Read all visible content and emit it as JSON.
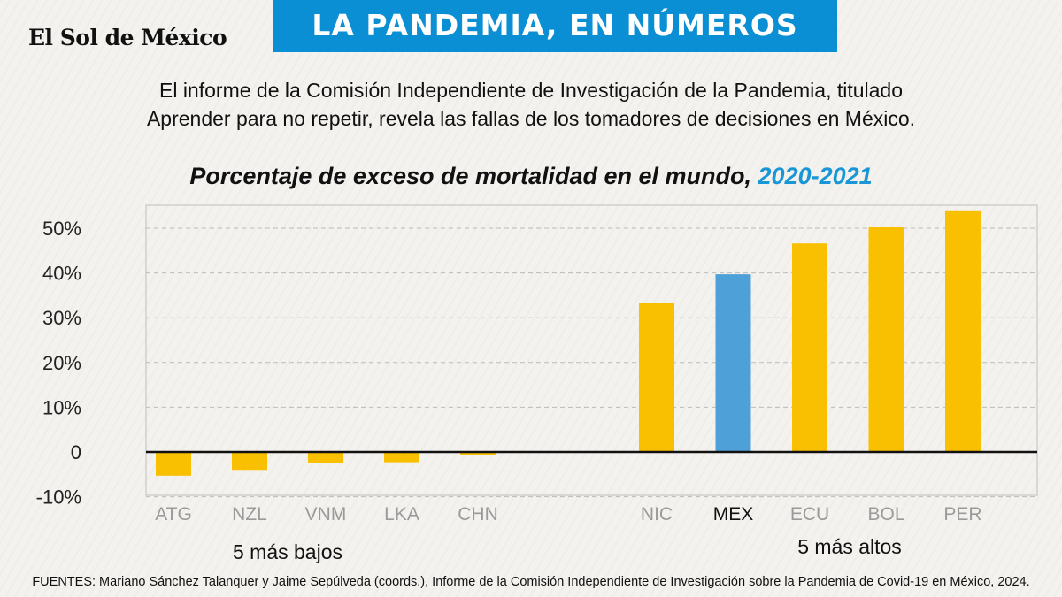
{
  "header": {
    "logo": "El Sol de México",
    "banner": "LA PANDEMIA, EN NÚMEROS",
    "intro_line1": "El informe de la Comisión Independiente de Investigación de la Pandemia, titulado",
    "intro_line2": "Aprender para no repetir, revela las fallas de los tomadores de decisiones en México."
  },
  "colors": {
    "banner": "#0a8fd4",
    "bar": "#f8c000",
    "highlight": "#4ea0d8",
    "title_year": "#1896d6"
  },
  "chart_data": {
    "type": "bar",
    "title": "Porcentaje de exceso de mortalidad en el mundo,",
    "title_year": "2020-2021",
    "categories": [
      "ATG",
      "NZL",
      "VNM",
      "LKA",
      "CHN",
      "NIC",
      "MEX",
      "ECU",
      "BOL",
      "PER"
    ],
    "values": [
      -5.3,
      -4.0,
      -2.5,
      -2.3,
      -0.7,
      33.2,
      39.7,
      46.6,
      50.2,
      53.8
    ],
    "highlight": "MEX",
    "ylim": [
      -10,
      55
    ],
    "yticks": [
      {
        "v": 50,
        "label": "50%"
      },
      {
        "v": 40,
        "label": "40%"
      },
      {
        "v": 30,
        "label": "30%"
      },
      {
        "v": 20,
        "label": "20%"
      },
      {
        "v": 10,
        "label": "10%"
      },
      {
        "v": 0,
        "label": "0"
      },
      {
        "v": -10,
        "label": "-10%"
      }
    ],
    "groups": [
      "5 más bajos",
      "5 más altos"
    ],
    "grid": true
  },
  "footer": {
    "source": "FUENTES: Mariano Sánchez Talanquer y Jaime Sepúlveda (coords.), Informe de la Comisión Independiente de Investigación sobre la Pandemia de Covid-19 en México, 2024."
  }
}
